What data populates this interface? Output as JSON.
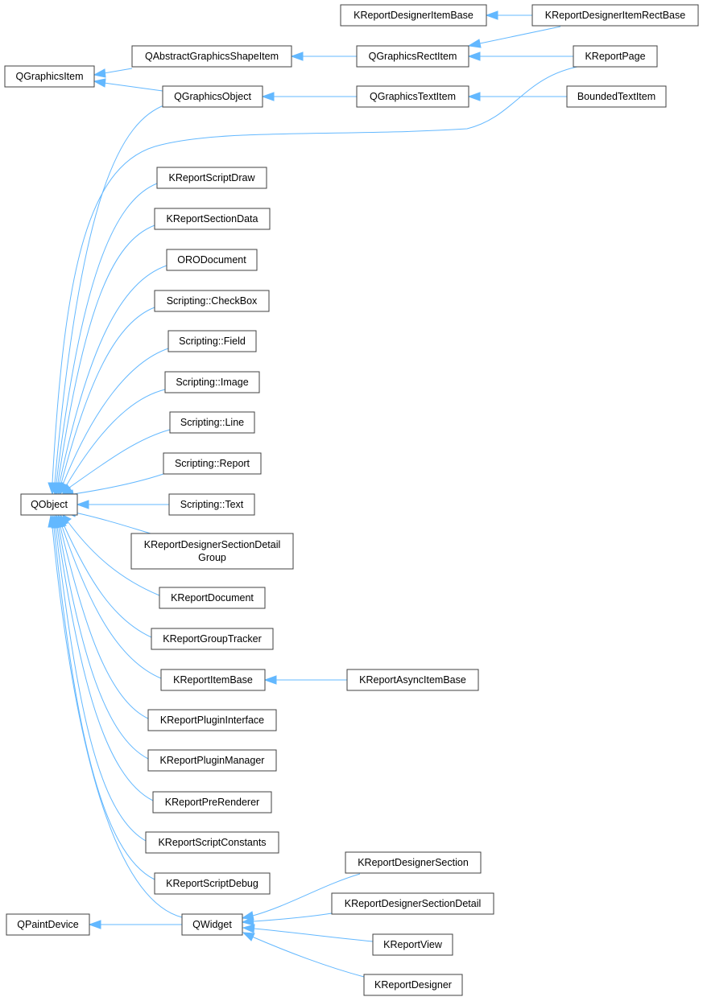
{
  "colors": {
    "edge": "#63b8ff",
    "node_border": "#404040",
    "background": "#ffffff"
  },
  "nodes": {
    "QGraphicsItem": {
      "label": "QGraphicsItem"
    },
    "QObject": {
      "label": "QObject"
    },
    "QPaintDevice": {
      "label": "QPaintDevice"
    },
    "QAbstractGraphicsShapeItem": {
      "label": "QAbstractGraphicsShapeItem"
    },
    "QGraphicsObject": {
      "label": "QGraphicsObject"
    },
    "QGraphicsRectItem": {
      "label": "QGraphicsRectItem"
    },
    "QGraphicsTextItem": {
      "label": "QGraphicsTextItem"
    },
    "KReportDesignerItemBase": {
      "label": "KReportDesignerItemBase"
    },
    "KReportDesignerItemRectBase": {
      "label": "KReportDesignerItemRectBase"
    },
    "KReportPage": {
      "label": "KReportPage"
    },
    "BoundedTextItem": {
      "label": "BoundedTextItem"
    },
    "KReportScriptDraw": {
      "label": "KReportScriptDraw"
    },
    "KReportSectionData": {
      "label": "KReportSectionData"
    },
    "ORODocument": {
      "label": "ORODocument"
    },
    "ScriptingCheckBox": {
      "label": "Scripting::CheckBox"
    },
    "ScriptingField": {
      "label": "Scripting::Field"
    },
    "ScriptingImage": {
      "label": "Scripting::Image"
    },
    "ScriptingLine": {
      "label": "Scripting::Line"
    },
    "ScriptingReport": {
      "label": "Scripting::Report"
    },
    "ScriptingText": {
      "label": "Scripting::Text"
    },
    "KReportDesignerSectionDetailGroup": {
      "label_line1": "KReportDesignerSectionDetail",
      "label_line2": "Group"
    },
    "KReportDocument": {
      "label": "KReportDocument"
    },
    "KReportGroupTracker": {
      "label": "KReportGroupTracker"
    },
    "KReportItemBase": {
      "label": "KReportItemBase"
    },
    "KReportAsyncItemBase": {
      "label": "KReportAsyncItemBase"
    },
    "KReportPluginInterface": {
      "label": "KReportPluginInterface"
    },
    "KReportPluginManager": {
      "label": "KReportPluginManager"
    },
    "KReportPreRenderer": {
      "label": "KReportPreRenderer"
    },
    "KReportScriptConstants": {
      "label": "KReportScriptConstants"
    },
    "KReportScriptDebug": {
      "label": "KReportScriptDebug"
    },
    "QWidget": {
      "label": "QWidget"
    },
    "KReportDesignerSection": {
      "label": "KReportDesignerSection"
    },
    "KReportDesignerSectionDetail": {
      "label": "KReportDesignerSectionDetail"
    },
    "KReportView": {
      "label": "KReportView"
    },
    "KReportDesigner": {
      "label": "KReportDesigner"
    }
  }
}
